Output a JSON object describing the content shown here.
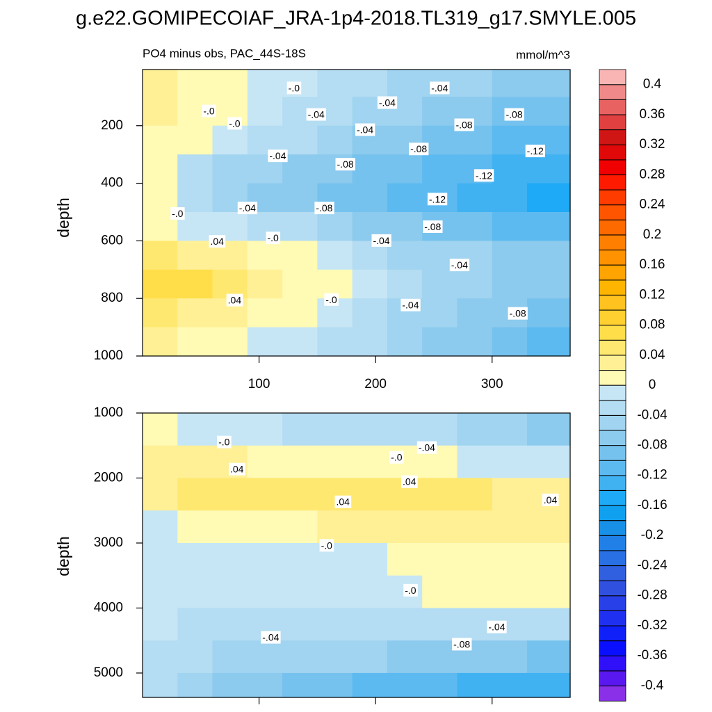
{
  "title": "g.e22.GOMIPECOIAF_JRA-1p4-2018.TL319_g17.SMYLE.005",
  "chart_data": [
    {
      "type": "contour",
      "subtitle": "PO4 minus obs, PAC_44S-18S",
      "units": "mmol/m^3",
      "y_label": "depth",
      "xlim": [
        0,
        367
      ],
      "ylim": [
        5,
        1000
      ],
      "y_reversed": true,
      "xticks": [
        100,
        200,
        300
      ],
      "xtick_labels": true,
      "yticks": [
        200,
        400,
        600,
        800,
        1000
      ],
      "x": [
        15,
        45,
        75,
        105,
        135,
        165,
        195,
        225,
        255,
        285,
        315,
        345
      ],
      "y": [
        50,
        150,
        250,
        350,
        450,
        550,
        650,
        750,
        850,
        950
      ],
      "z": [
        [
          0.03,
          0.02,
          0.01,
          0.0,
          -0.01,
          -0.02,
          -0.03,
          -0.04,
          -0.05,
          -0.05,
          -0.06,
          -0.06
        ],
        [
          0.03,
          0.02,
          0.01,
          -0.01,
          -0.02,
          -0.03,
          -0.04,
          -0.05,
          -0.06,
          -0.07,
          -0.08,
          -0.09
        ],
        [
          0.02,
          0.01,
          0.0,
          -0.02,
          -0.03,
          -0.05,
          -0.06,
          -0.07,
          -0.08,
          -0.09,
          -0.1,
          -0.11
        ],
        [
          0.01,
          -0.02,
          -0.04,
          -0.05,
          -0.06,
          -0.07,
          -0.08,
          -0.09,
          -0.1,
          -0.11,
          -0.12,
          -0.13
        ],
        [
          0.01,
          -0.03,
          -0.05,
          -0.06,
          -0.07,
          -0.08,
          -0.09,
          -0.1,
          -0.11,
          -0.12,
          -0.13,
          -0.14
        ],
        [
          0.02,
          0.0,
          -0.01,
          -0.02,
          -0.03,
          -0.05,
          -0.06,
          -0.07,
          -0.08,
          -0.09,
          -0.1,
          -0.11
        ],
        [
          0.05,
          0.04,
          0.03,
          0.02,
          0.01,
          0.0,
          -0.03,
          -0.04,
          -0.05,
          -0.05,
          -0.06,
          -0.07
        ],
        [
          0.07,
          0.07,
          0.06,
          0.04,
          0.02,
          0.01,
          -0.01,
          -0.03,
          -0.04,
          -0.05,
          -0.06,
          -0.07
        ],
        [
          0.05,
          0.04,
          0.03,
          0.02,
          0.01,
          0.0,
          -0.02,
          -0.04,
          -0.05,
          -0.06,
          -0.07,
          -0.09
        ],
        [
          0.03,
          0.02,
          0.01,
          0.0,
          -0.01,
          -0.02,
          -0.03,
          -0.05,
          -0.06,
          -0.07,
          -0.09,
          -0.1
        ]
      ],
      "contour_labels": {
        "x": [
          130,
          255,
          210,
          57,
          79,
          149,
          319,
          191,
          276,
          237,
          337,
          116,
          174,
          293,
          30,
          90,
          156,
          253,
          249,
          64,
          112,
          205,
          272,
          79,
          162,
          230,
          322
        ],
        "y": [
          72,
          72,
          123,
          152,
          195,
          164,
          164,
          217,
          200,
          284,
          291,
          308,
          337,
          376,
          508,
          489,
          489,
          458,
          554,
          605,
          593,
          602,
          687,
          809,
          807,
          826,
          855
        ],
        "values": [
          0,
          -0.04,
          -0.04,
          0,
          0,
          -0.04,
          -0.08,
          -0.04,
          -0.08,
          -0.08,
          -0.12,
          -0.04,
          -0.08,
          -0.12,
          0,
          -0.04,
          -0.08,
          -0.12,
          -0.08,
          0.04,
          0,
          -0.04,
          -0.04,
          0.04,
          0,
          -0.04,
          -0.08
        ],
        "value_labels": [
          "-.0",
          "-.04",
          "-.04",
          "-.0",
          "-.0",
          "-.04",
          "-.08",
          "-.04",
          "-.08",
          "-.08",
          "-.12",
          "-.04",
          "-.08",
          "-.12",
          "-.0",
          "-.04",
          "-.08",
          "-.12",
          "-.08",
          ".04",
          "-.0",
          "-.04",
          "-.04",
          ".04",
          "-.0",
          "-.04",
          "-.08"
        ]
      }
    },
    {
      "type": "contour",
      "y_label": "depth",
      "xlim": [
        0,
        367
      ],
      "ylim": [
        1000,
        5375
      ],
      "y_reversed": true,
      "xticks": [
        100,
        200,
        300
      ],
      "xtick_labels": false,
      "yticks": [
        1000,
        2000,
        3000,
        4000,
        5000
      ],
      "x": [
        15,
        45,
        75,
        105,
        135,
        165,
        195,
        225,
        255,
        285,
        315,
        345
      ],
      "y": [
        1250,
        1750,
        2250,
        2750,
        3250,
        3750,
        4250,
        4750,
        5250
      ],
      "z": [
        [
          0.01,
          0.0,
          -0.01,
          -0.01,
          -0.02,
          -0.02,
          -0.02,
          -0.03,
          -0.03,
          -0.04,
          -0.05,
          -0.06
        ],
        [
          0.03,
          0.03,
          0.03,
          0.02,
          0.02,
          0.02,
          0.01,
          0.01,
          0.01,
          0.0,
          0.0,
          0.0
        ],
        [
          0.03,
          0.05,
          0.05,
          0.05,
          0.05,
          0.05,
          0.05,
          0.05,
          0.05,
          0.05,
          0.04,
          0.04
        ],
        [
          0.0,
          0.01,
          0.02,
          0.02,
          0.02,
          0.03,
          0.03,
          0.03,
          0.03,
          0.03,
          0.03,
          0.03
        ],
        [
          -0.01,
          -0.01,
          -0.01,
          -0.01,
          -0.01,
          0.0,
          0.0,
          0.01,
          0.01,
          0.01,
          0.01,
          0.01
        ],
        [
          -0.01,
          -0.01,
          -0.01,
          -0.01,
          -0.01,
          -0.01,
          -0.01,
          -0.01,
          0.01,
          0.01,
          0.01,
          0.01
        ],
        [
          -0.01,
          -0.02,
          -0.02,
          -0.02,
          -0.02,
          -0.02,
          -0.02,
          -0.02,
          -0.02,
          -0.02,
          -0.02,
          -0.03
        ],
        [
          -0.02,
          -0.03,
          -0.04,
          -0.04,
          -0.05,
          -0.05,
          -0.05,
          -0.06,
          -0.06,
          -0.06,
          -0.07,
          -0.08
        ],
        [
          -0.03,
          -0.05,
          -0.06,
          -0.07,
          -0.08,
          -0.09,
          -0.1,
          -0.1,
          -0.11,
          -0.12,
          -0.12,
          -0.12
        ]
      ],
      "contour_labels": {
        "x": [
          70,
          244,
          218,
          81,
          229,
          172,
          350,
          158,
          230,
          304,
          110,
          274
        ],
        "y": [
          1460,
          1545,
          1695,
          1877,
          2070,
          2380,
          2350,
          3050,
          3740,
          4305,
          4465,
          4570
        ],
        "values": [
          0,
          -0.04,
          0,
          0.04,
          0.04,
          0.04,
          0.04,
          0,
          0,
          -0.04,
          -0.04,
          -0.08
        ],
        "value_labels": [
          "-.0",
          "-.04",
          "-.0",
          ".04",
          ".04",
          ".04",
          ".04",
          "-.0",
          "-.0",
          "-.04",
          "-.04",
          "-.08"
        ]
      }
    }
  ],
  "colorbar": {
    "levels": [
      -0.4,
      -0.38,
      -0.36,
      -0.34,
      -0.32,
      -0.3,
      -0.28,
      -0.26,
      -0.24,
      -0.22,
      -0.2,
      -0.18,
      -0.16,
      -0.14,
      -0.12,
      -0.1,
      -0.08,
      -0.06,
      -0.04,
      -0.02,
      0,
      0.02,
      0.04,
      0.06,
      0.08,
      0.1,
      0.12,
      0.14,
      0.16,
      0.18,
      0.2,
      0.22,
      0.24,
      0.26,
      0.28,
      0.3,
      0.32,
      0.34,
      0.36,
      0.38,
      0.4
    ],
    "colors": [
      "#8a30e8",
      "#5a18f0",
      "#3010f8",
      "#0a10ff",
      "#1020f8",
      "#2030f0",
      "#2840e8",
      "#3050e0",
      "#3060e0",
      "#2870e4",
      "#2080e8",
      "#1890e8",
      "#10a0f0",
      "#1eaaf6",
      "#40b2f2",
      "#5cbaf0",
      "#76c2ee",
      "#8ccaee",
      "#a0d4f0",
      "#b4dcf2",
      "#c6e6f6",
      "#fffab4",
      "#fff096",
      "#ffe870",
      "#ffde4a",
      "#ffd030",
      "#ffc21e",
      "#ffb400",
      "#ffa400",
      "#ff9200",
      "#ff8000",
      "#ff6a00",
      "#ff5500",
      "#ff3c00",
      "#ff1a00",
      "#f00000",
      "#e00808",
      "#d01515",
      "#e04040",
      "#e86262",
      "#f08a8a",
      "#f9b4b4"
    ],
    "ticks": [
      0.4,
      0.36,
      0.32,
      0.28,
      0.24,
      0.2,
      0.16,
      0.12,
      0.08,
      0.04,
      0,
      -0.04,
      -0.08,
      -0.12,
      -0.16,
      -0.2,
      -0.24,
      -0.28,
      -0.32,
      -0.36,
      -0.4
    ]
  }
}
